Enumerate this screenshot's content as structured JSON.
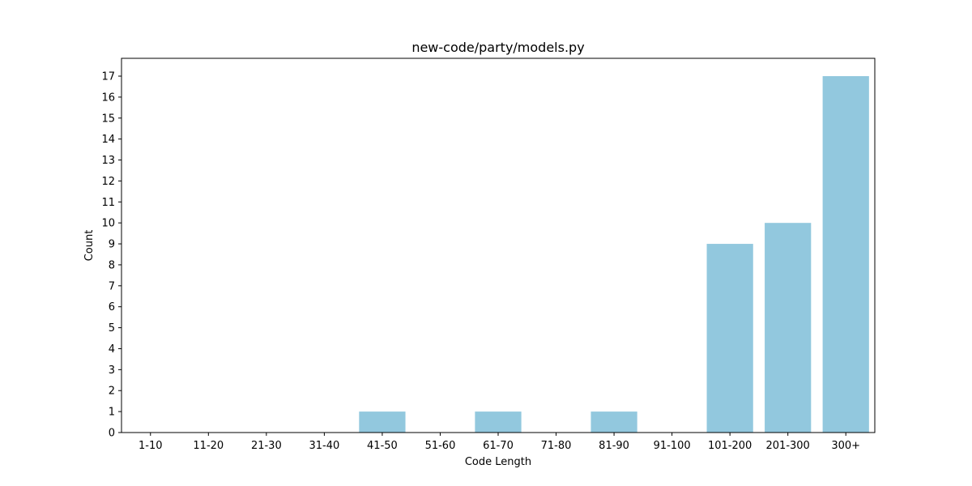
{
  "chart_data": {
    "type": "bar",
    "title": "new-code/party/models.py",
    "xlabel": "Code Length",
    "ylabel": "Count",
    "categories": [
      "1-10",
      "11-20",
      "21-30",
      "31-40",
      "41-50",
      "51-60",
      "61-70",
      "71-80",
      "81-90",
      "91-100",
      "101-200",
      "201-300",
      "300+"
    ],
    "values": [
      0,
      0,
      0,
      0,
      1,
      0,
      1,
      0,
      1,
      0,
      9,
      10,
      17
    ],
    "ylim": [
      0,
      17.85
    ],
    "yticks": [
      0,
      1,
      2,
      3,
      4,
      5,
      6,
      7,
      8,
      9,
      10,
      11,
      12,
      13,
      14,
      15,
      16,
      17
    ],
    "grid": false,
    "legend": "none",
    "bar_color": "#92c8de"
  }
}
